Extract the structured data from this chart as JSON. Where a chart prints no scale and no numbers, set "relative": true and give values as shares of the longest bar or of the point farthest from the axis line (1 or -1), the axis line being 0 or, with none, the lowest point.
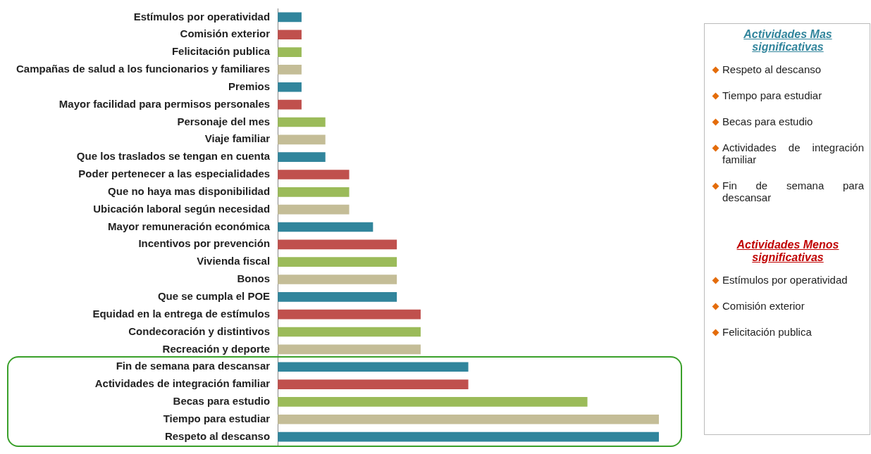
{
  "chart_data": {
    "type": "bar",
    "orientation": "horizontal",
    "relative": true,
    "categories": [
      "Estímulos por operatividad",
      "Comisión exterior",
      "Felicitación publica",
      "Campañas de salud a los funcionarios y familiares",
      "Premios",
      "Mayor facilidad para permisos personales",
      "Personaje del mes",
      "Viaje familiar",
      "Que los traslados se tengan en cuenta",
      "Poder pertenecer a las especialidades",
      "Que no haya mas disponibilidad",
      "Ubicación laboral según necesidad",
      "Mayor remuneración económica",
      "Incentivos por prevención",
      "Vivienda fiscal",
      "Bonos",
      "Que se cumpla el POE",
      "Equidad en la entrega de estímulos",
      "Condecoración y distintivos",
      "Recreación y deporte",
      "Fin de semana para descansar",
      "Actividades de integración familiar",
      "Becas para estudio",
      "Tiempo para estudiar",
      "Respeto al descanso"
    ],
    "values": [
      0.0625,
      0.0625,
      0.0625,
      0.0625,
      0.0625,
      0.0625,
      0.125,
      0.125,
      0.125,
      0.1875,
      0.1875,
      0.1875,
      0.25,
      0.3125,
      0.3125,
      0.3125,
      0.3125,
      0.375,
      0.375,
      0.375,
      0.5,
      0.5,
      0.8125,
      1,
      1
    ],
    "colors": [
      "#31859c",
      "#c0504d",
      "#9bbb59",
      "#c4bd97",
      "#31859c",
      "#c0504d",
      "#9bbb59",
      "#c4bd97",
      "#31859c",
      "#c0504d",
      "#9bbb59",
      "#c4bd97",
      "#31859c",
      "#c0504d",
      "#9bbb59",
      "#c4bd97",
      "#31859c",
      "#c0504d",
      "#9bbb59",
      "#c4bd97",
      "#31859c",
      "#c0504d",
      "#9bbb59",
      "#c4bd97",
      "#31859c"
    ],
    "annotations": [
      "Actividades Mas significativas",
      "Respeto al descanso",
      "Tiempo para estudiar",
      "Becas para estudio",
      "Actividades de integración familiar",
      "Fin de semana para descansar",
      "Actividades Menos significativas",
      "Estímulos por operatividad",
      "Comisión exterior",
      "Felicitación publica"
    ],
    "legend": false
  }
}
